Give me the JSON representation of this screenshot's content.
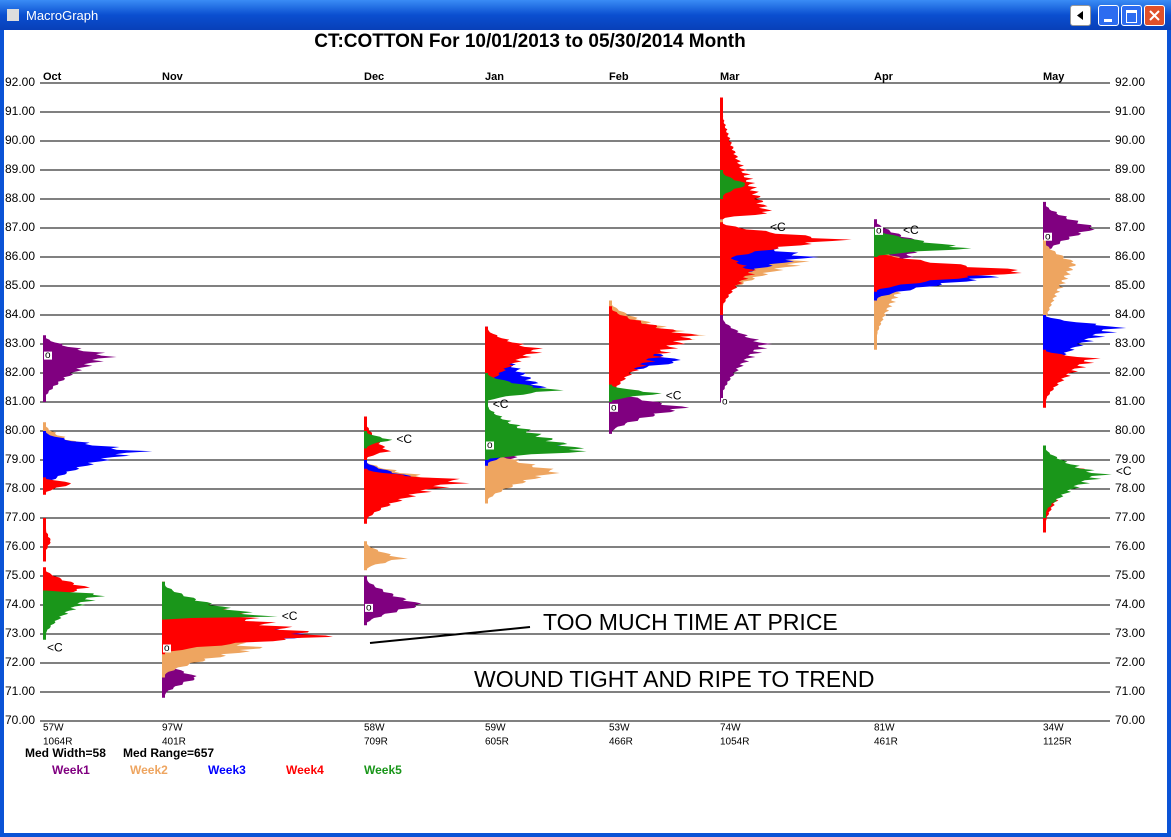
{
  "window_title": "MacroGraph",
  "chart_data": {
    "type": "market-profile",
    "title": "CT:COTTON  For 10/01/2013 to 05/30/2014 Month",
    "ylim": [
      70,
      92
    ],
    "yticks": [
      {
        "value": 70,
        "label": "70.00"
      },
      {
        "value": 71,
        "label": "71.00"
      },
      {
        "value": 72,
        "label": "72.00"
      },
      {
        "value": 73,
        "label": "73.00"
      },
      {
        "value": 74,
        "label": "74.00"
      },
      {
        "value": 75,
        "label": "75.00"
      },
      {
        "value": 76,
        "label": "76.00"
      },
      {
        "value": 77,
        "label": "77.00"
      },
      {
        "value": 78,
        "label": "78.00"
      },
      {
        "value": 79,
        "label": "79.00"
      },
      {
        "value": 80,
        "label": "80.00"
      },
      {
        "value": 81,
        "label": "81.00"
      },
      {
        "value": 82,
        "label": "82.00"
      },
      {
        "value": 83,
        "label": "83.00"
      },
      {
        "value": 84,
        "label": "84.00"
      },
      {
        "value": 85,
        "label": "85.00"
      },
      {
        "value": 86,
        "label": "86.00"
      },
      {
        "value": 87,
        "label": "87.00"
      },
      {
        "value": 88,
        "label": "88.00"
      },
      {
        "value": 89,
        "label": "89.00"
      },
      {
        "value": 90,
        "label": "90.00"
      },
      {
        "value": 91,
        "label": "91.00"
      },
      {
        "value": 92,
        "label": "92.00"
      }
    ],
    "categories": [
      "Oct",
      "Nov",
      "Dec",
      "Jan",
      "Feb",
      "Mar",
      "Apr",
      "May"
    ],
    "widths": [
      "57W",
      "97W",
      "58W",
      "59W",
      "53W",
      "74W",
      "81W",
      "34W"
    ],
    "ranges": [
      "1064R",
      "401R",
      "709R",
      "605R",
      "466R",
      "1054R",
      "461R",
      "1125R"
    ],
    "open": [
      82.6,
      72.5,
      73.9,
      79.5,
      80.8,
      81.0,
      86.9,
      86.7
    ],
    "close": [
      72.5,
      73.6,
      79.7,
      80.9,
      81.2,
      87.0,
      86.9,
      78.6
    ],
    "open_label": "o",
    "close_label": "<C",
    "stats": [
      "Med Width=58",
      "Med Range=657"
    ],
    "annotations": [
      "TOO MUCH TIME AT PRICE",
      "WOUND TIGHT AND RIPE TO TREND"
    ],
    "series": [
      {
        "name": "Week1",
        "color": "#800080",
        "values": [
          [
            {
              "low": 81,
              "high": 83.3,
              "peak": 82.6,
              "count": 80
            }
          ],
          [
            {
              "low": 70.8,
              "high": 72.2,
              "peak": 71.5,
              "count": 45
            }
          ],
          [
            {
              "low": 73.3,
              "high": 75,
              "peak": 74,
              "count": 72
            }
          ],
          [
            {
              "low": 78,
              "high": 80.5,
              "peak": 79.5,
              "count": 60
            }
          ],
          [
            {
              "low": 79.9,
              "high": 81.5,
              "peak": 80.8,
              "count": 95
            }
          ],
          [
            {
              "low": 81,
              "high": 84,
              "peak": 83,
              "count": 55
            }
          ],
          [
            {
              "low": 84,
              "high": 87.3,
              "peak": 86.5,
              "count": 60
            }
          ],
          [
            {
              "low": 86,
              "high": 87.9,
              "peak": 87,
              "count": 65
            }
          ]
        ]
      },
      {
        "name": "Week2",
        "color": "#eea560",
        "values": [
          [
            {
              "low": 78.3,
              "high": 80.3,
              "peak": 79.3,
              "count": 70
            }
          ],
          [
            {
              "low": 71.5,
              "high": 73.8,
              "peak": 72.5,
              "count": 120
            }
          ],
          [
            {
              "low": 75.2,
              "high": 76.2,
              "peak": 75.6,
              "count": 48
            },
            {
              "low": 77,
              "high": 79,
              "peak": 78.3,
              "count": 100
            }
          ],
          [
            {
              "low": 77.5,
              "high": 79.5,
              "peak": 78.6,
              "count": 90
            }
          ],
          [
            {
              "low": 81.5,
              "high": 84.5,
              "peak": 83.3,
              "count": 100
            }
          ],
          [
            {
              "low": 84.5,
              "high": 87.3,
              "peak": 85.8,
              "count": 100
            }
          ],
          [
            {
              "low": 82.8,
              "high": 85.3,
              "peak": 84.8,
              "count": 30
            },
            {
              "low": 84.5,
              "high": 86.5,
              "peak": 85.3,
              "count": 110
            }
          ],
          [
            {
              "low": 83.3,
              "high": 86.6,
              "peak": 85.8,
              "count": 40
            }
          ]
        ]
      },
      {
        "name": "Week3",
        "color": "#0000ff",
        "values": [
          [
            {
              "low": 78,
              "high": 80,
              "peak": 79.3,
              "count": 115
            }
          ],
          [
            {
              "low": 72.5,
              "high": 74.5,
              "peak": 72.9,
              "count": 180
            }
          ],
          [
            {
              "low": 77.8,
              "high": 79,
              "peak": 78.2,
              "count": 100
            }
          ],
          [
            {
              "low": 78.8,
              "high": 80,
              "peak": 79.5,
              "count": 90
            },
            {
              "low": 81,
              "high": 83.6,
              "peak": 81.5,
              "count": 70
            }
          ],
          [
            {
              "low": 81.8,
              "high": 83.5,
              "peak": 82.4,
              "count": 90
            }
          ],
          [
            {
              "low": 85,
              "high": 87,
              "peak": 86,
              "count": 110
            },
            {
              "low": 87.3,
              "high": 87.8,
              "peak": 87.5,
              "count": 20
            }
          ],
          [
            {
              "low": 84.5,
              "high": 86,
              "peak": 85.3,
              "count": 150
            }
          ],
          [
            {
              "low": 81.8,
              "high": 84,
              "peak": 83.6,
              "count": 90
            }
          ]
        ]
      },
      {
        "name": "Week4",
        "color": "#ff0000",
        "values": [
          [
            {
              "low": 77.8,
              "high": 78.4,
              "peak": 78.2,
              "count": 40
            },
            {
              "low": 74,
              "high": 75.3,
              "peak": 74.6,
              "count": 55
            },
            {
              "low": 75.5,
              "high": 77,
              "peak": 76.2,
              "count": 10
            }
          ],
          [
            {
              "low": 72.3,
              "high": 74.8,
              "peak": 72.9,
              "count": 200
            }
          ],
          [
            {
              "low": 76.8,
              "high": 78.7,
              "peak": 78.3,
              "count": 120
            },
            {
              "low": 79,
              "high": 80.5,
              "peak": 79.3,
              "count": 30
            }
          ],
          [
            {
              "low": 81.3,
              "high": 83.6,
              "peak": 82.8,
              "count": 65
            }
          ],
          [
            {
              "low": 81,
              "high": 84.3,
              "peak": 83.3,
              "count": 105
            }
          ],
          [
            {
              "low": 84,
              "high": 86.5,
              "peak": 85.5,
              "count": 40
            },
            {
              "low": 85.8,
              "high": 87.2,
              "peak": 86.6,
              "count": 150
            },
            {
              "low": 87.3,
              "high": 91.5,
              "peak": 87.5,
              "count": 60
            }
          ],
          [
            {
              "low": 84.8,
              "high": 86.2,
              "peak": 85.5,
              "count": 195
            }
          ],
          [
            {
              "low": 76.5,
              "high": 79,
              "peak": 78.7,
              "count": 50
            },
            {
              "low": 80.8,
              "high": 82.8,
              "peak": 82.5,
              "count": 60
            }
          ]
        ]
      },
      {
        "name": "Week5",
        "color": "#1a961a",
        "values": [
          [
            {
              "low": 72.8,
              "high": 74.5,
              "peak": 74.4,
              "count": 70
            }
          ],
          [
            {
              "low": 73.5,
              "high": 74.8,
              "peak": 73.6,
              "count": 125
            }
          ],
          [
            {
              "low": 79.4,
              "high": 80,
              "peak": 79.7,
              "count": 35
            }
          ],
          [
            {
              "low": 79,
              "high": 81,
              "peak": 79.3,
              "count": 125
            },
            {
              "low": 81,
              "high": 82,
              "peak": 81.4,
              "count": 90
            }
          ],
          [
            {
              "low": 81,
              "high": 81.6,
              "peak": 81.3,
              "count": 65
            }
          ],
          [
            {
              "low": 88,
              "high": 89,
              "peak": 88.5,
              "count": 35
            }
          ],
          [
            {
              "low": 86,
              "high": 87,
              "peak": 86.3,
              "count": 120
            }
          ],
          [
            {
              "low": 77,
              "high": 79.5,
              "peak": 78.5,
              "count": 70
            }
          ]
        ]
      }
    ]
  }
}
